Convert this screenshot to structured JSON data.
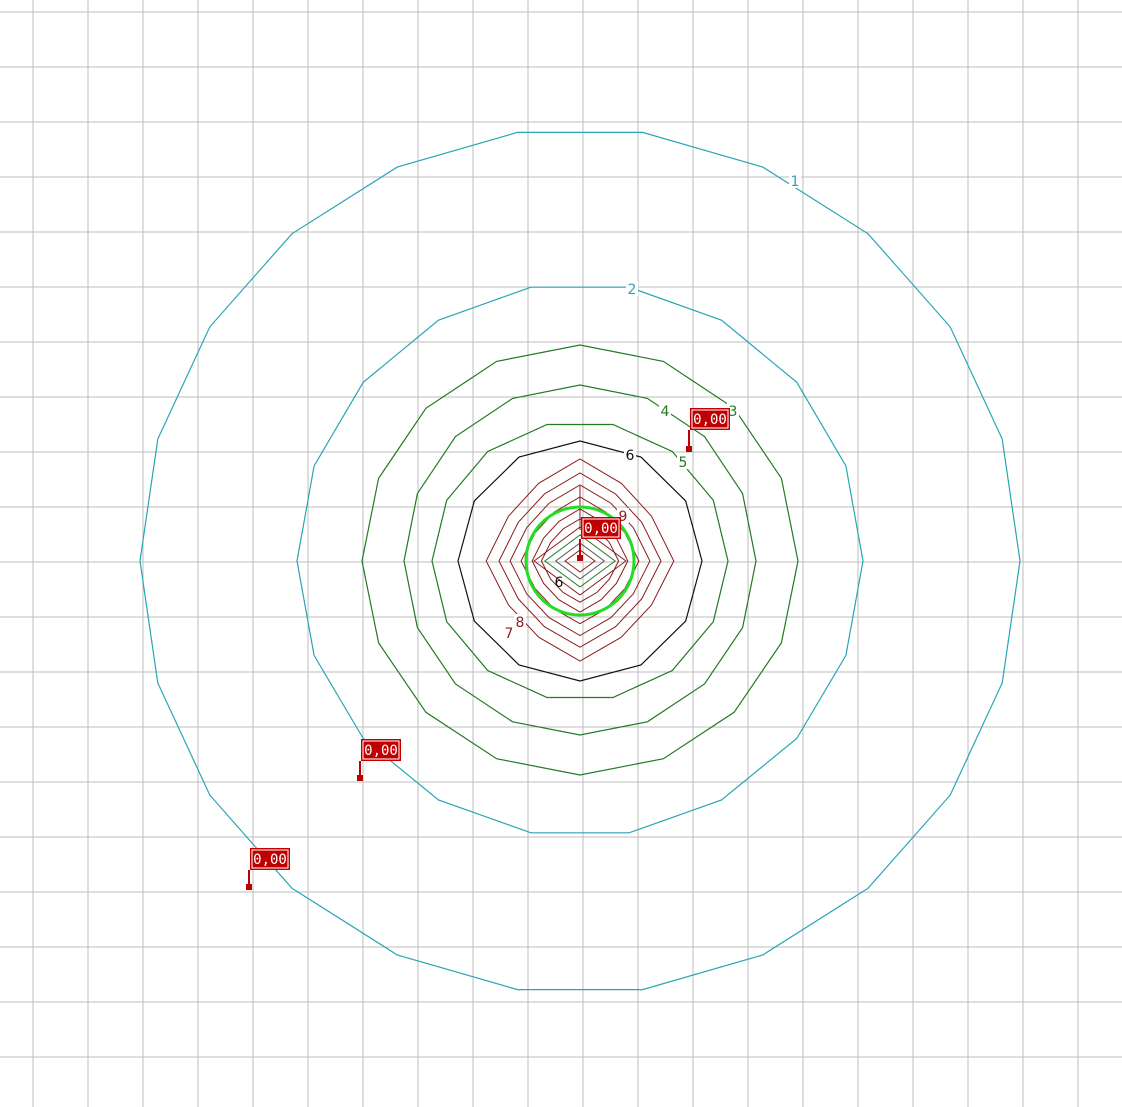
{
  "colors": {
    "background": "#ffffff",
    "grid": "#bdbdbd",
    "marker": "#c00000",
    "marker_text": "#ffffff",
    "highlight_ring": "#22dd22"
  },
  "contours": [
    {
      "level": 1,
      "label": "1",
      "color": "#2aa5b5"
    },
    {
      "level": 2,
      "label": "2",
      "color": "#2aa5b5"
    },
    {
      "level": 3,
      "label": "3",
      "color": "#227a22"
    },
    {
      "level": 4,
      "label": "4",
      "color": "#227a22"
    },
    {
      "level": 5,
      "label": "5",
      "color": "#227a22"
    },
    {
      "level": 6,
      "label": "6",
      "color": "#111111"
    },
    {
      "level": 7,
      "label": "7",
      "color": "#8b1c1c"
    },
    {
      "level": 8,
      "label": "8",
      "color": "#8b1c1c"
    },
    {
      "level": 9,
      "label": "9",
      "color": "#8b1c1c"
    }
  ],
  "markers": [
    {
      "id": "center",
      "value": "0,00"
    },
    {
      "id": "upper-right",
      "value": "0,00"
    },
    {
      "id": "left",
      "value": "0,00"
    },
    {
      "id": "lower-left",
      "value": "0,00"
    }
  ]
}
